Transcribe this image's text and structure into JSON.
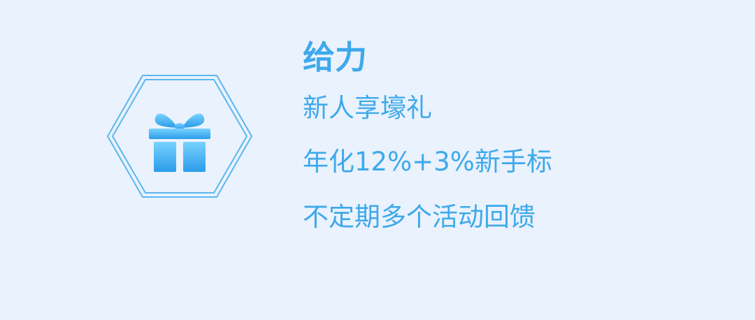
{
  "colors": {
    "background": "#EAF2FD",
    "accent": "#3EA9EB",
    "icon_light": "#78D2FF",
    "icon_dark": "#2B9CE8"
  },
  "promo": {
    "icon": "gift-icon",
    "title": "给力",
    "lines": [
      "新人享壕礼",
      "年化12%+3%新手标",
      "不定期多个活动回馈"
    ]
  }
}
